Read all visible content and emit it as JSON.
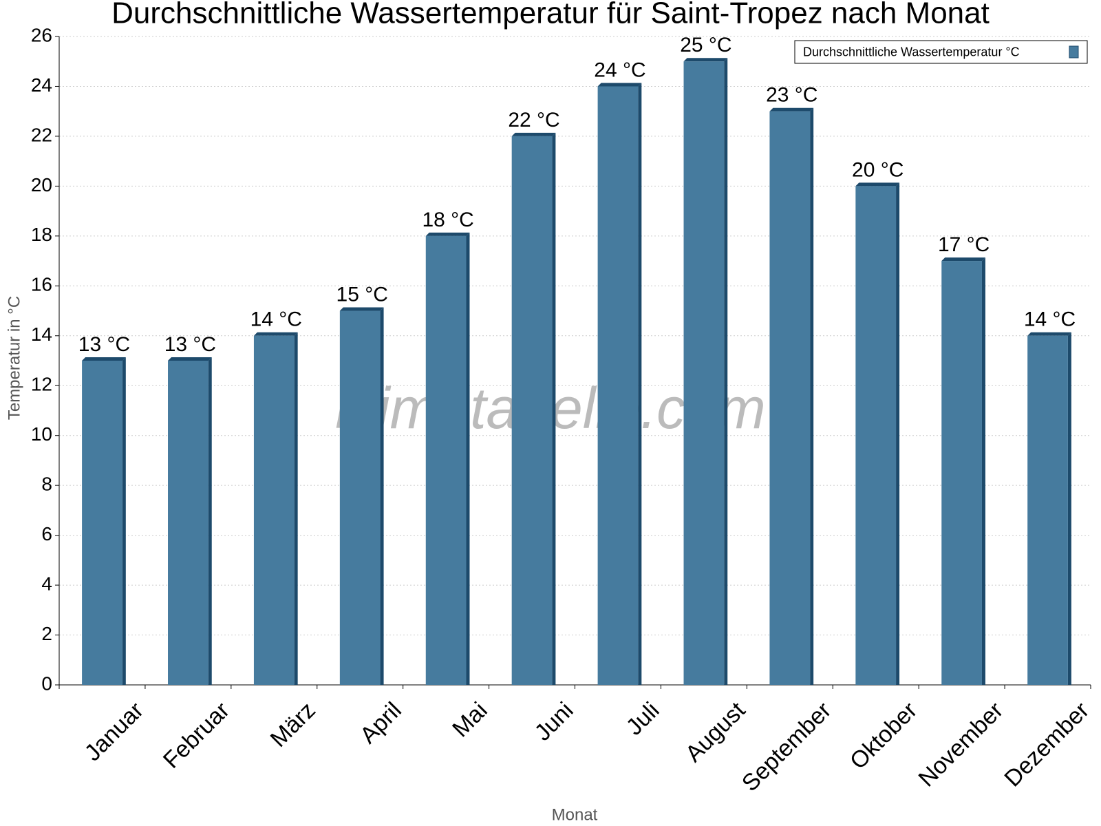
{
  "chart_data": {
    "type": "bar",
    "title": "Durchschnittliche Wassertemperatur für Saint-Tropez nach Monat",
    "x_label": "Monat",
    "y_label": "Temperatur in °C",
    "watermark": "klimatabelle.com",
    "categories": [
      "Januar",
      "Februar",
      "März",
      "April",
      "Mai",
      "Juni",
      "Juli",
      "August",
      "September",
      "Oktober",
      "November",
      "Dezember"
    ],
    "series": [
      {
        "name": "Durchschnittliche Wassertemperatur °C",
        "color": "#467b9e",
        "values": [
          13,
          13,
          14,
          15,
          18,
          22,
          24,
          25,
          23,
          20,
          17,
          14
        ],
        "value_labels": [
          "13 °C",
          "13 °C",
          "14 °C",
          "15 °C",
          "18 °C",
          "22 °C",
          "24 °C",
          "25 °C",
          "23 °C",
          "20 °C",
          "17 °C",
          "14 °C"
        ]
      }
    ],
    "ylim": [
      0,
      26
    ],
    "yticks": [
      0,
      2,
      4,
      6,
      8,
      10,
      12,
      14,
      16,
      18,
      20,
      22,
      24,
      26
    ],
    "grid": true,
    "legend": "top-right"
  }
}
